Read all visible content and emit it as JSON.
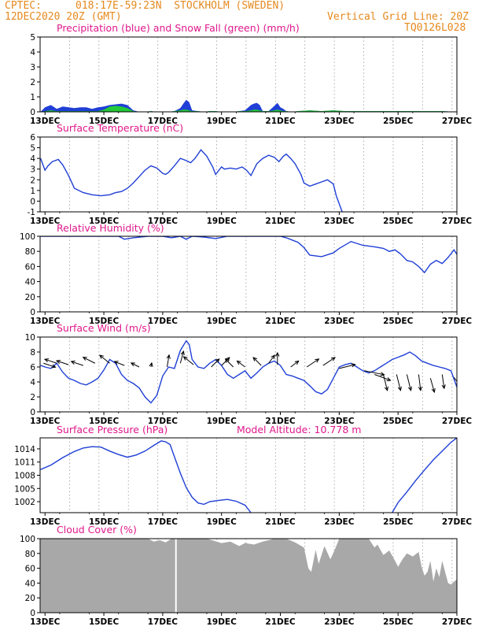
{
  "header": {
    "source": "CPTEC:",
    "location": "018:17E-59:23N  STOCKHOLM (SWEDEN)",
    "datetime": "12DEC2020 20Z (GMT)",
    "grid_note": "Vertical Grid Line: 20Z",
    "code": "TQ0126L028",
    "model_altitude": "Model Altitude: 10.778 m"
  },
  "colors": {
    "header": "#e6891e",
    "title": "#e0188c",
    "line": "#1f3fd6",
    "rain": "#1f3fd6",
    "snow": "#22c93a",
    "cloud": "#a8a8a8",
    "arrow": "#000000"
  },
  "x_axis": {
    "start": "12DEC2020 20Z",
    "end": "27DEC2020 00Z",
    "tick_labels": [
      "13DEC",
      "15DEC",
      "17DEC",
      "19DEC",
      "21DEC",
      "23DEC",
      "25DEC",
      "27DEC"
    ],
    "tick_days": [
      13,
      15,
      17,
      19,
      21,
      23,
      25,
      27
    ],
    "vertical_grid_hour": "20Z"
  },
  "chart_data": [
    {
      "type": "area",
      "title": "Precipitation (blue) and Snow Fall (green) (mm/h)",
      "ylim": [
        0,
        5
      ],
      "yticks": [
        0,
        1,
        2,
        3,
        4,
        5
      ],
      "series": [
        {
          "name": "Precipitation",
          "x": [
            12.85,
            13.0,
            13.2,
            13.4,
            13.6,
            13.8,
            14.0,
            14.2,
            14.4,
            14.6,
            14.8,
            15.0,
            15.2,
            15.4,
            15.6,
            15.8,
            16.0,
            16.2,
            16.4,
            16.6,
            16.8,
            17.0,
            17.2,
            17.4,
            17.6,
            17.7,
            17.8,
            17.9,
            18.0,
            18.2,
            18.4,
            18.6,
            18.8,
            19.0,
            19.2,
            19.4,
            19.6,
            19.8,
            20.0,
            20.1,
            20.2,
            20.3,
            20.4,
            20.6,
            20.8,
            20.9,
            21.0,
            21.1,
            21.2,
            21.4,
            21.6,
            22.0,
            22.4,
            22.8,
            23.2,
            23.6,
            24.0,
            24.5,
            25.0,
            25.5,
            26.0,
            26.5,
            27.0
          ],
          "values": [
            0,
            0.3,
            0.45,
            0.2,
            0.35,
            0.3,
            0.25,
            0.3,
            0.3,
            0.2,
            0.3,
            0.35,
            0.45,
            0.5,
            0.55,
            0.45,
            0.1,
            0,
            0,
            0.05,
            0,
            0,
            0,
            0.05,
            0.25,
            0.55,
            0.8,
            0.65,
            0.1,
            0.05,
            0,
            0.05,
            0.05,
            0,
            0,
            0,
            0.05,
            0.1,
            0.45,
            0.55,
            0.6,
            0.45,
            0.05,
            0.05,
            0.4,
            0.6,
            0.3,
            0.2,
            0.05,
            0,
            0.05,
            0.1,
            0.05,
            0.1,
            0.05,
            0.05,
            0.05,
            0.05,
            0.05,
            0.05,
            0.05,
            0.05,
            0
          ]
        },
        {
          "name": "Snow Fall",
          "x": [
            12.85,
            13.0,
            13.2,
            13.4,
            13.6,
            13.8,
            14.0,
            14.2,
            14.4,
            14.6,
            14.8,
            15.0,
            15.2,
            15.4,
            15.6,
            15.8,
            16.0,
            16.2,
            16.4,
            16.6,
            16.8,
            17.0,
            17.2,
            17.4,
            17.6,
            17.7,
            17.8,
            17.9,
            18.0,
            18.2,
            18.4,
            18.6,
            18.8,
            19.0,
            19.2,
            19.4,
            19.6,
            19.8,
            20.0,
            20.1,
            20.2,
            20.3,
            20.4,
            20.6,
            20.8,
            20.9,
            21.0,
            21.1,
            21.2,
            21.4,
            21.6,
            22.0,
            22.4,
            22.8,
            23.2,
            23.6,
            24.0,
            24.5,
            25.0,
            25.5,
            26.0,
            26.5,
            27.0
          ],
          "values": [
            0,
            0.05,
            0.1,
            0.05,
            0.05,
            0.05,
            0.05,
            0.05,
            0.05,
            0.05,
            0.05,
            0.15,
            0.35,
            0.4,
            0.35,
            0.25,
            0.05,
            0,
            0,
            0.05,
            0,
            0,
            0,
            0.05,
            0.1,
            0.15,
            0.15,
            0.1,
            0.05,
            0.05,
            0,
            0.05,
            0.05,
            0,
            0,
            0,
            0.05,
            0.05,
            0.1,
            0.15,
            0.15,
            0.1,
            0.05,
            0.05,
            0.1,
            0.15,
            0.1,
            0.05,
            0.05,
            0,
            0.05,
            0.1,
            0.05,
            0.1,
            0.05,
            0.05,
            0.05,
            0.05,
            0.05,
            0.05,
            0.05,
            0.05,
            0
          ]
        }
      ]
    },
    {
      "type": "line",
      "title": "Surface Temperature (nC)",
      "ylim": [
        -1,
        6
      ],
      "yticks": [
        -1,
        0,
        1,
        2,
        3,
        4,
        5,
        6
      ],
      "series": [
        {
          "x": [
            12.85,
            13.0,
            13.1,
            13.25,
            13.45,
            13.6,
            13.8,
            14.0,
            14.3,
            14.6,
            14.9,
            15.2,
            15.4,
            15.6,
            15.8,
            16.0,
            16.2,
            16.4,
            16.6,
            16.8,
            17.0,
            17.1,
            17.2,
            17.4,
            17.6,
            17.8,
            17.95,
            18.1,
            18.3,
            18.5,
            18.7,
            18.8,
            19.0,
            19.1,
            19.3,
            19.5,
            19.7,
            19.85,
            20.0,
            20.2,
            20.4,
            20.6,
            20.8,
            20.95,
            21.1,
            21.2,
            21.35,
            21.5,
            21.7,
            21.8,
            22.0,
            22.2,
            22.4,
            22.6,
            22.8,
            22.9,
            23.1
          ],
          "values": [
            4,
            2.9,
            3.3,
            3.7,
            3.9,
            3.4,
            2.4,
            1.2,
            0.8,
            0.6,
            0.5,
            0.6,
            0.8,
            0.9,
            1.2,
            1.7,
            2.3,
            2.9,
            3.3,
            3.1,
            2.6,
            2.5,
            2.7,
            3.3,
            4.0,
            3.8,
            3.6,
            4.0,
            4.8,
            4.2,
            3.2,
            2.5,
            3.2,
            3.0,
            3.1,
            3.0,
            3.2,
            2.9,
            2.4,
            3.5,
            4.0,
            4.3,
            4.1,
            3.7,
            4.2,
            4.4,
            4.0,
            3.5,
            2.5,
            1.7,
            1.4,
            1.6,
            1.8,
            2.0,
            1.6,
            0.5,
            -1
          ]
        }
      ]
    },
    {
      "type": "line",
      "title": "Relative Humidity (%)",
      "ylim": [
        0,
        100
      ],
      "yticks": [
        0,
        20,
        40,
        60,
        80,
        100
      ],
      "series": [
        {
          "x": [
            12.85,
            13.5,
            14.5,
            15.5,
            15.7,
            16.0,
            16.5,
            17.0,
            17.3,
            17.6,
            17.8,
            18.0,
            18.4,
            18.8,
            19.2,
            19.6,
            20.0,
            20.5,
            21.0,
            21.2,
            21.4,
            21.6,
            21.8,
            22.0,
            22.4,
            22.8,
            23.0,
            23.4,
            23.8,
            24.2,
            24.5,
            24.7,
            24.9,
            25.1,
            25.3,
            25.5,
            25.7,
            25.9,
            26.1,
            26.3,
            26.5,
            26.7,
            26.9,
            27.0
          ],
          "values": [
            100,
            100,
            100,
            100,
            96,
            98,
            100,
            100,
            98,
            100,
            96,
            100,
            99,
            97,
            100,
            100,
            100,
            100,
            100,
            98,
            95,
            92,
            85,
            75,
            73,
            78,
            84,
            93,
            88,
            86,
            84,
            80,
            82,
            76,
            68,
            66,
            60,
            52,
            63,
            68,
            64,
            72,
            82,
            76
          ]
        }
      ]
    },
    {
      "type": "line",
      "title": "Surface Wind (m/s)",
      "ylim": [
        0,
        10
      ],
      "yticks": [
        0,
        2,
        4,
        6,
        8,
        10
      ],
      "series": [
        {
          "x": [
            12.85,
            13.0,
            13.2,
            13.4,
            13.6,
            13.8,
            14.0,
            14.2,
            14.4,
            14.6,
            14.8,
            15.0,
            15.2,
            15.4,
            15.6,
            15.8,
            16.0,
            16.2,
            16.4,
            16.6,
            16.8,
            17.0,
            17.2,
            17.4,
            17.6,
            17.8,
            17.9,
            18.0,
            18.2,
            18.4,
            18.6,
            18.8,
            19.0,
            19.2,
            19.4,
            19.6,
            19.8,
            20.0,
            20.2,
            20.4,
            20.6,
            20.8,
            21.0,
            21.2,
            21.4,
            21.6,
            21.8,
            22.0,
            22.2,
            22.4,
            22.6,
            22.8,
            23.0,
            23.2,
            23.4,
            23.6,
            23.8,
            24.0,
            24.2,
            24.4,
            24.6,
            24.8,
            25.0,
            25.2,
            25.4,
            25.6,
            25.8,
            26.0,
            26.2,
            26.4,
            26.6,
            26.8,
            27.0
          ],
          "values": [
            6.2,
            6.0,
            5.8,
            6.5,
            5.3,
            4.5,
            4.2,
            3.8,
            3.6,
            4.0,
            4.5,
            5.6,
            7.0,
            6.5,
            5.0,
            4.2,
            3.8,
            3.2,
            2.0,
            1.2,
            2.2,
            4.8,
            6.0,
            5.8,
            8.2,
            9.5,
            9.0,
            7.0,
            6.0,
            5.8,
            6.5,
            7.0,
            6.2,
            5.0,
            4.5,
            5.0,
            5.5,
            4.5,
            5.2,
            6.0,
            6.5,
            6.8,
            6.2,
            5.0,
            4.8,
            4.5,
            4.2,
            3.5,
            2.7,
            2.4,
            3.0,
            4.5,
            6.0,
            6.3,
            6.5,
            6.0,
            5.5,
            5.2,
            5.5,
            6.0,
            6.5,
            7.0,
            7.3,
            7.6,
            8.0,
            7.5,
            6.8,
            6.5,
            6.2,
            6.0,
            5.8,
            5.5,
            3.3
          ]
        }
      ],
      "wind_vectors": [
        {
          "x": 12.95,
          "y": 6.5,
          "u": 3,
          "v": -1
        },
        {
          "x": 13.4,
          "y": 6.5,
          "u": -3,
          "v": 1
        },
        {
          "x": 13.8,
          "y": 6.3,
          "u": -3,
          "v": 1
        },
        {
          "x": 14.3,
          "y": 6.2,
          "u": -3,
          "v": 1
        },
        {
          "x": 14.7,
          "y": 6.5,
          "u": -3,
          "v": 1.5
        },
        {
          "x": 15.2,
          "y": 6.5,
          "u": -2.5,
          "v": 2
        },
        {
          "x": 15.7,
          "y": 6.2,
          "u": -2.5,
          "v": 1
        },
        {
          "x": 16.2,
          "y": 6.0,
          "u": -2,
          "v": 1
        },
        {
          "x": 16.6,
          "y": 6.0,
          "u": 0.2,
          "v": 1
        },
        {
          "x": 17.15,
          "y": 6.0,
          "u": 0.5,
          "v": 3
        },
        {
          "x": 17.6,
          "y": 6.5,
          "u": 0.8,
          "v": 3
        },
        {
          "x": 18.05,
          "y": 6.3,
          "u": -2.5,
          "v": 2
        },
        {
          "x": 18.65,
          "y": 6.0,
          "u": 2,
          "v": 2
        },
        {
          "x": 19.0,
          "y": 6.2,
          "u": 2,
          "v": 2
        },
        {
          "x": 19.4,
          "y": 6.0,
          "u": -2,
          "v": 2
        },
        {
          "x": 19.8,
          "y": 6.0,
          "u": -2,
          "v": 1.5
        },
        {
          "x": 20.35,
          "y": 6.2,
          "u": -2,
          "v": 2
        },
        {
          "x": 20.6,
          "y": 6.5,
          "u": 1.5,
          "v": 2
        },
        {
          "x": 20.9,
          "y": 6.3,
          "u": 0,
          "v": 3
        },
        {
          "x": 21.35,
          "y": 6.0,
          "u": 2,
          "v": 1.5
        },
        {
          "x": 21.9,
          "y": 6.0,
          "u": 3,
          "v": 2
        },
        {
          "x": 22.45,
          "y": 6.2,
          "u": 3,
          "v": 2
        },
        {
          "x": 23.0,
          "y": 5.8,
          "u": 4,
          "v": 1
        },
        {
          "x": 23.85,
          "y": 5.5,
          "u": 5,
          "v": -1
        },
        {
          "x": 24.2,
          "y": 5.0,
          "u": 4,
          "v": -1.5
        },
        {
          "x": 24.5,
          "y": 5.0,
          "u": 1,
          "v": -4
        },
        {
          "x": 24.95,
          "y": 5.0,
          "u": 1,
          "v": -4
        },
        {
          "x": 25.3,
          "y": 5.0,
          "u": 1,
          "v": -4
        },
        {
          "x": 25.7,
          "y": 5.0,
          "u": 0.5,
          "v": -4
        },
        {
          "x": 26.1,
          "y": 4.5,
          "u": 1,
          "v": -3.5
        },
        {
          "x": 26.5,
          "y": 5.0,
          "u": 0.5,
          "v": -3.5
        },
        {
          "x": 26.9,
          "y": 4.6,
          "u": 1.5,
          "v": -2
        }
      ]
    },
    {
      "type": "line",
      "title": "Surface Pressure (hPa)",
      "ylim": [
        999.5,
        1016.5
      ],
      "yticks": [
        1002,
        1005,
        1008,
        1011,
        1014
      ],
      "series": [
        {
          "x": [
            12.85,
            13.2,
            13.6,
            14.0,
            14.3,
            14.6,
            14.9,
            15.2,
            15.5,
            15.8,
            16.1,
            16.4,
            16.7,
            16.95,
            17.1,
            17.25,
            17.4,
            17.6,
            17.8,
            18.0,
            18.2,
            18.4,
            18.6,
            18.9,
            19.2,
            19.5,
            19.8,
            20.0
          ],
          "values": [
            1009.3,
            1010.3,
            1012.0,
            1013.4,
            1014.2,
            1014.5,
            1014.4,
            1013.5,
            1012.7,
            1012.1,
            1012.6,
            1013.5,
            1014.8,
            1015.8,
            1015.6,
            1015.0,
            1012.2,
            1008.5,
            1005.2,
            1003.0,
            1001.7,
            1001.4,
            1002.0,
            1002.3,
            1002.5,
            1002.1,
            1001.2,
            999.5
          ]
        },
        {
          "x": [
            24.8,
            25.0,
            25.3,
            25.6,
            25.9,
            26.2,
            26.5,
            26.8,
            27.0
          ],
          "values": [
            999.5,
            1001.8,
            1004.2,
            1006.8,
            1009.2,
            1011.5,
            1013.5,
            1015.5,
            1016.5
          ]
        }
      ]
    },
    {
      "type": "area",
      "title": "Cloud Cover (%)",
      "ylim": [
        0,
        100
      ],
      "yticks": [
        0,
        20,
        40,
        60,
        80,
        100
      ],
      "series": [
        {
          "x": [
            12.85,
            16.5,
            16.7,
            16.9,
            17.1,
            17.3,
            17.5,
            18.0,
            18.5,
            19.0,
            19.3,
            19.6,
            19.8,
            20.1,
            20.4,
            20.8,
            21.2,
            21.5,
            21.8,
            21.95,
            22.05,
            22.2,
            22.3,
            22.5,
            22.7,
            22.85,
            23.0,
            23.5,
            24.0,
            24.2,
            24.3,
            24.5,
            24.7,
            24.9,
            25.0,
            25.15,
            25.3,
            25.5,
            25.7,
            25.8,
            25.9,
            26.0,
            26.1,
            26.2,
            26.3,
            26.4,
            26.5,
            26.6,
            26.7,
            26.8,
            26.9,
            27.0
          ],
          "values": [
            100,
            100,
            96,
            98,
            95,
            100,
            100,
            100,
            100,
            94,
            96,
            90,
            94,
            92,
            96,
            100,
            100,
            95,
            88,
            60,
            55,
            85,
            66,
            90,
            72,
            85,
            100,
            100,
            100,
            88,
            92,
            78,
            84,
            70,
            62,
            72,
            80,
            76,
            82,
            62,
            50,
            55,
            70,
            42,
            60,
            48,
            70,
            55,
            40,
            38,
            42,
            45
          ]
        }
      ],
      "gaps_x": [
        17.45
      ]
    }
  ]
}
